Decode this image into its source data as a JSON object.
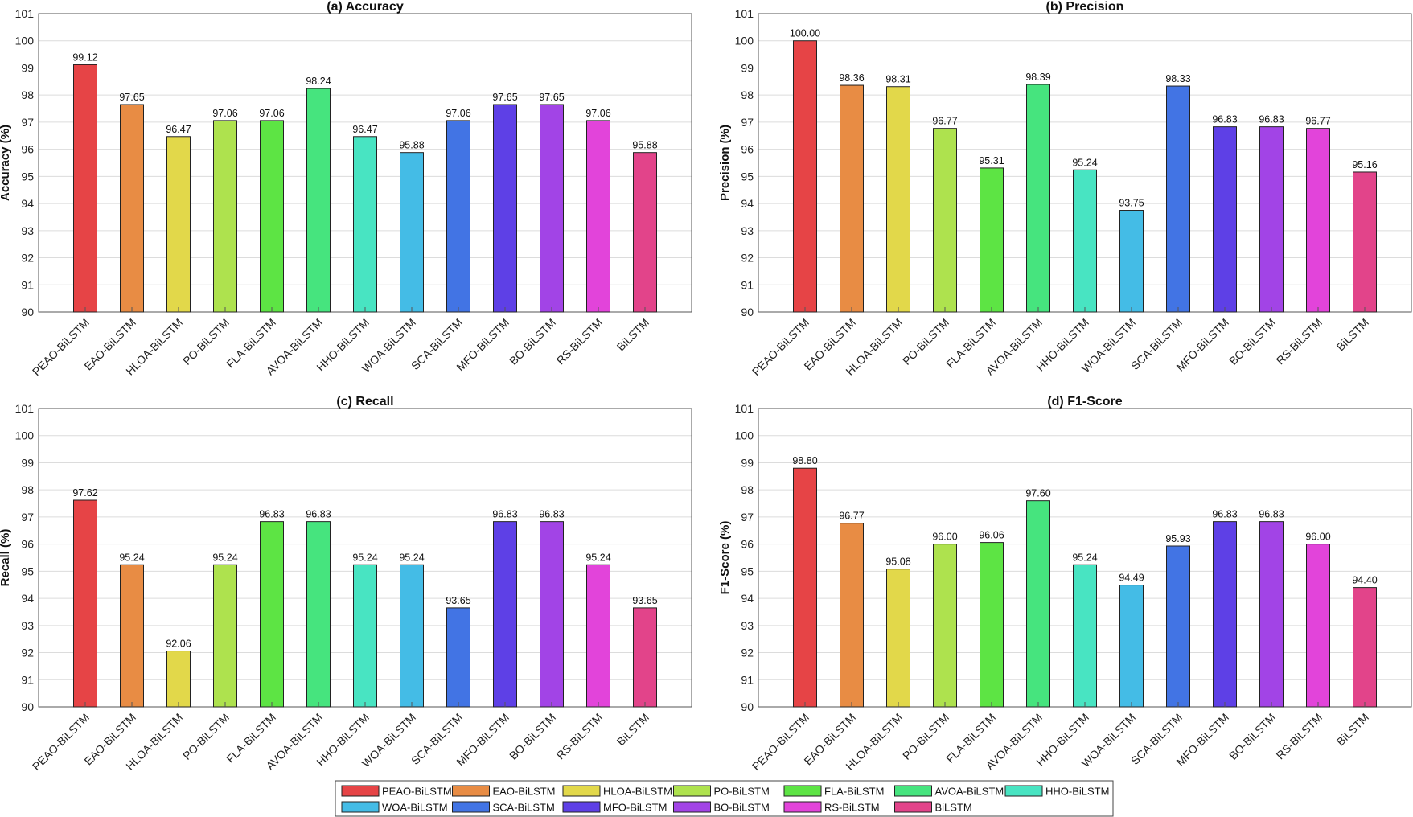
{
  "colors": [
    "#e64446",
    "#e88c44",
    "#e2d84a",
    "#aee24e",
    "#5de444",
    "#46e47e",
    "#48e4c2",
    "#44bce6",
    "#4274e4",
    "#5e40e6",
    "#a244e6",
    "#e244da",
    "#e2448a"
  ],
  "legend": {
    "entries": [
      "PEAO-BiLSTM",
      "EAO-BiLSTM",
      "HLOA-BiLSTM",
      "PO-BiLSTM",
      "FLA-BiLSTM",
      "AVOA-BiLSTM",
      "HHO-BiLSTM",
      "WOA-BiLSTM",
      "SCA-BiLSTM",
      "MFO-BiLSTM",
      "BO-BiLSTM",
      "RS-BiLSTM",
      "BiLSTM"
    ]
  },
  "chart_data": [
    {
      "type": "bar",
      "title": "(a) Accuracy",
      "xlabel": "",
      "ylabel": "Accuracy (%)",
      "ylim": [
        90,
        101
      ],
      "yticks": [
        90,
        91,
        92,
        93,
        94,
        95,
        96,
        97,
        98,
        99,
        100,
        101
      ],
      "grid": true,
      "categories": [
        "PEAO-BiLSTM",
        "EAO-BiLSTM",
        "HLOA-BiLSTM",
        "PO-BiLSTM",
        "FLA-BiLSTM",
        "AVOA-BiLSTM",
        "HHO-BiLSTM",
        "WOA-BiLSTM",
        "SCA-BiLSTM",
        "MFO-BiLSTM",
        "BO-BiLSTM",
        "RS-BiLSTM",
        "BiLSTM"
      ],
      "values": [
        99.12,
        97.65,
        96.47,
        97.06,
        97.06,
        98.24,
        96.47,
        95.88,
        97.06,
        97.65,
        97.65,
        97.06,
        95.88
      ],
      "labels": [
        "99.12",
        "97.65",
        "96.47",
        "97.06",
        "97.06",
        "98.24",
        "96.47",
        "95.88",
        "97.06",
        "97.65",
        "97.65",
        "97.06",
        "95.88"
      ]
    },
    {
      "type": "bar",
      "title": "(b) Precision",
      "xlabel": "",
      "ylabel": "Precision (%)",
      "ylim": [
        90,
        101
      ],
      "yticks": [
        90,
        91,
        92,
        93,
        94,
        95,
        96,
        97,
        98,
        99,
        100,
        101
      ],
      "grid": true,
      "categories": [
        "PEAO-BiLSTM",
        "EAO-BiLSTM",
        "HLOA-BiLSTM",
        "PO-BiLSTM",
        "FLA-BiLSTM",
        "AVOA-BiLSTM",
        "HHO-BiLSTM",
        "WOA-BiLSTM",
        "SCA-BiLSTM",
        "MFO-BiLSTM",
        "BO-BiLSTM",
        "RS-BiLSTM",
        "BiLSTM"
      ],
      "values": [
        100.0,
        98.36,
        98.31,
        96.77,
        95.31,
        98.39,
        95.24,
        93.75,
        98.33,
        96.83,
        96.83,
        96.77,
        95.16
      ],
      "labels": [
        "100.00",
        "98.36",
        "98.31",
        "96.77",
        "95.31",
        "98.39",
        "95.24",
        "93.75",
        "98.33",
        "96.83",
        "96.83",
        "96.77",
        "95.16"
      ]
    },
    {
      "type": "bar",
      "title": "(c) Recall",
      "xlabel": "",
      "ylabel": "Recall (%)",
      "ylim": [
        90,
        101
      ],
      "yticks": [
        90,
        91,
        92,
        93,
        94,
        95,
        96,
        97,
        98,
        99,
        100,
        101
      ],
      "grid": true,
      "categories": [
        "PEAO-BiLSTM",
        "EAO-BiLSTM",
        "HLOA-BiLSTM",
        "PO-BiLSTM",
        "FLA-BiLSTM",
        "AVOA-BiLSTM",
        "HHO-BiLSTM",
        "WOA-BiLSTM",
        "SCA-BiLSTM",
        "MFO-BiLSTM",
        "BO-BiLSTM",
        "RS-BiLSTM",
        "BiLSTM"
      ],
      "values": [
        97.62,
        95.24,
        92.06,
        95.24,
        96.83,
        96.83,
        95.24,
        95.24,
        93.65,
        96.83,
        96.83,
        95.24,
        93.65
      ],
      "labels": [
        "97.62",
        "95.24",
        "92.06",
        "95.24",
        "96.83",
        "96.83",
        "95.24",
        "95.24",
        "93.65",
        "96.83",
        "96.83",
        "95.24",
        "93.65"
      ]
    },
    {
      "type": "bar",
      "title": "(d) F1-Score",
      "xlabel": "",
      "ylabel": "F1-Score (%)",
      "ylim": [
        90,
        101
      ],
      "yticks": [
        90,
        91,
        92,
        93,
        94,
        95,
        96,
        97,
        98,
        99,
        100,
        101
      ],
      "grid": true,
      "categories": [
        "PEAO-BiLSTM",
        "EAO-BiLSTM",
        "HLOA-BiLSTM",
        "PO-BiLSTM",
        "FLA-BiLSTM",
        "AVOA-BiLSTM",
        "HHO-BiLSTM",
        "WOA-BiLSTM",
        "SCA-BiLSTM",
        "MFO-BiLSTM",
        "BO-BiLSTM",
        "RS-BiLSTM",
        "BiLSTM"
      ],
      "values": [
        98.8,
        96.77,
        95.08,
        96.0,
        96.06,
        97.6,
        95.24,
        94.49,
        95.93,
        96.83,
        96.83,
        96.0,
        94.4
      ],
      "labels": [
        "98.80",
        "96.77",
        "95.08",
        "96.00",
        "96.06",
        "97.60",
        "95.24",
        "94.49",
        "95.93",
        "96.83",
        "96.83",
        "96.00",
        "94.40"
      ]
    }
  ]
}
